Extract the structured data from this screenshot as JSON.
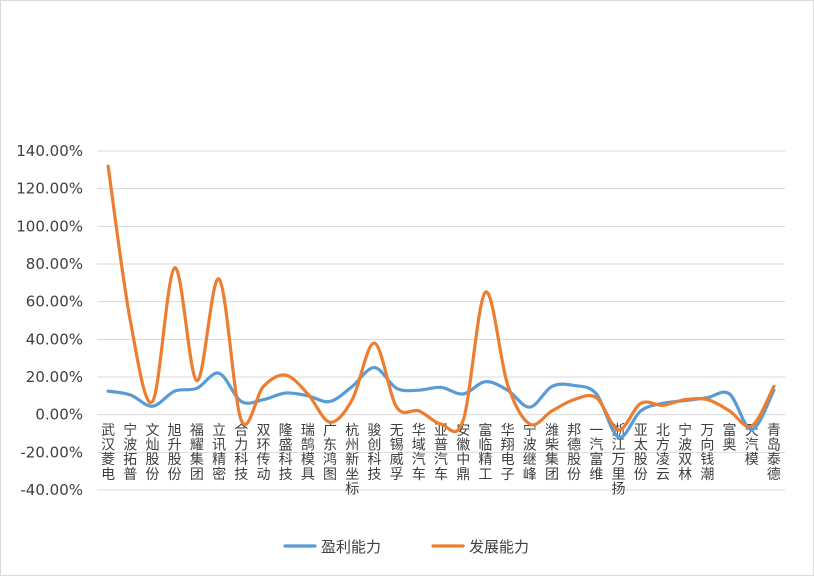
{
  "chart_data": {
    "type": "line",
    "title": "",
    "xlabel": "",
    "ylabel": "",
    "categories": [
      "武汉菱电",
      "宁波拓普",
      "文灿股份",
      "旭升股份",
      "福耀集团",
      "立讯精密",
      "合力科技",
      "双环传动",
      "隆盛科技",
      "瑞鹄模具",
      "广东鸿图",
      "杭州新坐标",
      "骏创科技",
      "无锡威孚",
      "华域汽车",
      "亚普汽车",
      "安徽中鼎",
      "富临精工",
      "华翔电子",
      "宁波继峰",
      "潍柴集团",
      "邦德股份",
      "一汽富维",
      "浙江万里扬",
      "亚太股份",
      "北方凌云",
      "宁波双林",
      "万向钱潮",
      "富奥",
      "天汽模",
      "青岛泰德"
    ],
    "series": [
      {
        "name": "盈利能力",
        "color": "#5B9BD5",
        "values": [
          12.5,
          10.5,
          4.5,
          12.5,
          14,
          22,
          7,
          8,
          11.5,
          10,
          7,
          15,
          25,
          14,
          13,
          14.5,
          11,
          17.5,
          13,
          4,
          15,
          15.5,
          11,
          -12,
          2,
          6,
          7.5,
          9,
          11,
          -8,
          13
        ]
      },
      {
        "name": "发展能力",
        "color": "#ED7D31",
        "values": [
          132,
          50,
          7,
          78,
          18,
          72,
          -3,
          15,
          21,
          11,
          -4,
          8,
          38,
          4,
          2,
          -5,
          -3,
          65,
          16,
          -5,
          2,
          8,
          9,
          -8,
          6,
          5,
          8,
          8,
          2,
          -6,
          15
        ]
      }
    ],
    "y_ticks": [
      "140.00%",
      "120.00%",
      "100.00%",
      "80.00%",
      "60.00%",
      "40.00%",
      "20.00%",
      "0.00%",
      "-20.00%",
      "-40.00%"
    ],
    "ylim": [
      -40,
      140
    ],
    "grid": true,
    "legend": "bottom"
  }
}
